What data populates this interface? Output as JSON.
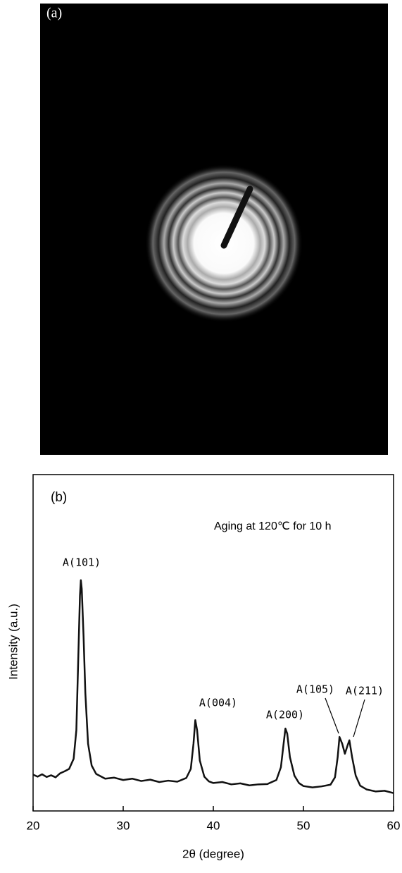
{
  "panel_a": {
    "label": "(a)"
  },
  "chart_data": {
    "type": "line",
    "panel_label": "(b)",
    "subtitle": "Aging at 120℃ for 10 h",
    "x_label": "2θ (degree)",
    "y_label": "Intensity (a.u.)",
    "color": "#111111",
    "xlim": [
      20,
      60
    ],
    "xticks": [
      20,
      30,
      40,
      50,
      60
    ],
    "ylim": [
      0,
      100
    ],
    "x": [
      20,
      20.5,
      21,
      21.5,
      22,
      22.5,
      23,
      23.5,
      24,
      24.5,
      24.8,
      25.0,
      25.2,
      25.3,
      25.4,
      25.6,
      25.8,
      26.1,
      26.5,
      27,
      27.5,
      28,
      29,
      30,
      31,
      32,
      33,
      34,
      35,
      36,
      37,
      37.5,
      37.8,
      38.0,
      38.2,
      38.5,
      39,
      39.5,
      40,
      41,
      42,
      43,
      44,
      45,
      46,
      47,
      47.5,
      47.8,
      48.0,
      48.2,
      48.5,
      49,
      49.5,
      50,
      51,
      52,
      53,
      53.5,
      53.8,
      54.0,
      54.3,
      54.6,
      54.9,
      55.1,
      55.4,
      55.8,
      56.3,
      57,
      58,
      59,
      60
    ],
    "values": [
      10.8,
      10.2,
      10.9,
      10.1,
      10.6,
      10.0,
      11.2,
      11.8,
      12.5,
      15.5,
      24,
      44,
      64,
      68.6,
      66,
      52,
      35,
      20,
      13.5,
      11.0,
      10.3,
      9.6,
      9.9,
      9.2,
      9.6,
      8.9,
      9.3,
      8.6,
      9.0,
      8.7,
      9.8,
      12.5,
      20,
      27,
      24,
      15,
      10.2,
      8.8,
      8.3,
      8.6,
      7.9,
      8.2,
      7.6,
      7.9,
      8.0,
      9.2,
      13,
      20,
      24.5,
      23,
      16,
      10.5,
      8.3,
      7.4,
      7.0,
      7.3,
      7.8,
      10,
      16,
      22,
      20,
      17,
      19.5,
      21,
      16,
      10.5,
      7.5,
      6.4,
      5.8,
      6.0,
      5.3
    ],
    "annotations": [
      "A(101)",
      "A(004)",
      "A(200)",
      "A(105)",
      "A(211)"
    ]
  }
}
